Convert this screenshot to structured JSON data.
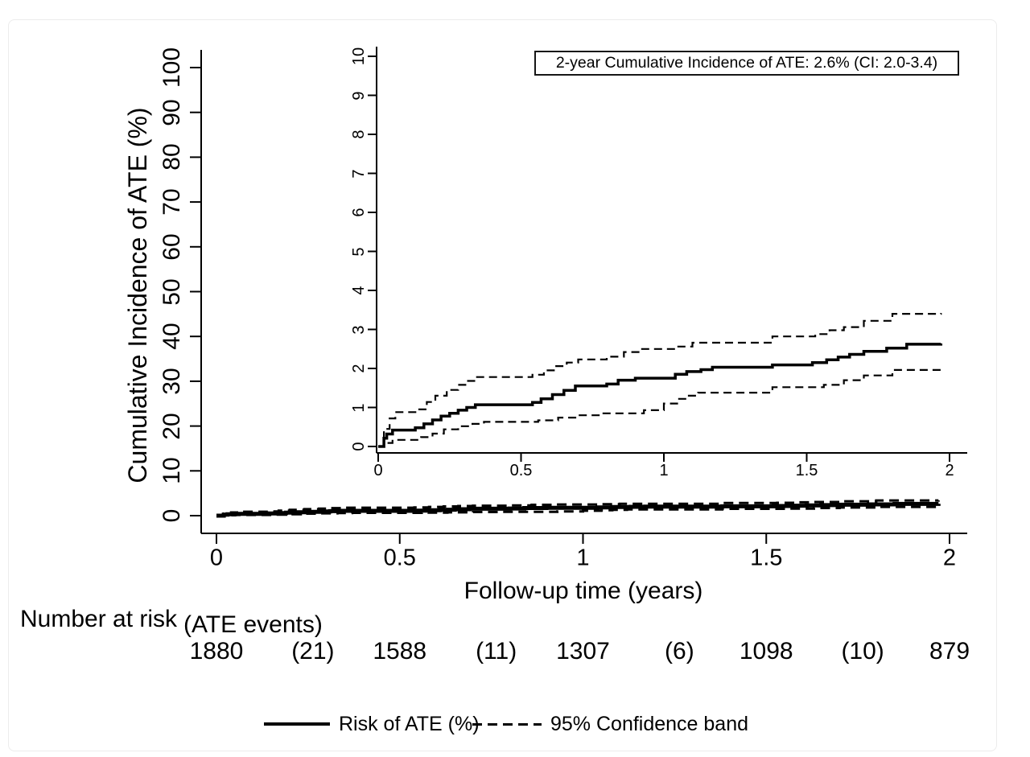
{
  "page": {
    "background": "#ffffff",
    "card_border_color": "#ececec",
    "ink_color": "#000000"
  },
  "main_plot": {
    "y_axis_label": "Cumulative Incidence of ATE (%)",
    "x_axis_label": "Follow-up time (years)",
    "y_ticks": [
      "0",
      "10",
      "20",
      "30",
      "40",
      "50",
      "60",
      "70",
      "80",
      "90",
      "100"
    ],
    "x_ticks": [
      "0",
      "0.5",
      "1",
      "1.5",
      "2"
    ]
  },
  "inset_plot": {
    "y_ticks": [
      "0",
      "1",
      "2",
      "3",
      "4",
      "5",
      "6",
      "7",
      "8",
      "9",
      "10"
    ],
    "x_ticks": [
      "0",
      "0.5",
      "1",
      "1.5",
      "2"
    ],
    "annotation": "2-year Cumulative Incidence of ATE: 2.6% (CI: 2.0-3.4)"
  },
  "risk_table": {
    "label": "Number at risk",
    "sublabel": "(ATE events)",
    "at_risk": [
      "1880",
      "1588",
      "1307",
      "1098",
      "879"
    ],
    "events": [
      "(21)",
      "(11)",
      "(6)",
      "(10)"
    ]
  },
  "legend": {
    "items": [
      {
        "style": "solid",
        "label": "Risk of ATE (%)"
      },
      {
        "style": "dashed",
        "label": "95% Confidence band"
      }
    ]
  },
  "chart_data": {
    "type": "line",
    "subtype": "step-function-cumulative-incidence",
    "title": "",
    "xlabel": "Follow-up time (years)",
    "ylabel": "Cumulative Incidence of ATE (%)",
    "x_range": [
      0,
      2
    ],
    "main_y_range": [
      0,
      100
    ],
    "inset_y_range": [
      0,
      10
    ],
    "grid": false,
    "legend_position": "bottom",
    "annotation": "2-year Cumulative Incidence of ATE: 2.6% (CI: 2.0-3.4)",
    "summary": {
      "estimate_2yr_pct": 2.6,
      "ci_low_pct": 2.0,
      "ci_high_pct": 3.4
    },
    "series": [
      {
        "name": "Risk of ATE (%)",
        "style": "solid",
        "t": [
          0,
          0.02,
          0.03,
          0.05,
          0.13,
          0.16,
          0.19,
          0.22,
          0.25,
          0.28,
          0.31,
          0.34,
          0.54,
          0.57,
          0.61,
          0.65,
          0.69,
          0.8,
          0.84,
          0.9,
          1.04,
          1.08,
          1.13,
          1.17,
          1.38,
          1.52,
          1.57,
          1.61,
          1.65,
          1.7,
          1.78,
          1.85,
          1.97
        ],
        "v": [
          0,
          0.21,
          0.32,
          0.42,
          0.48,
          0.58,
          0.68,
          0.78,
          0.85,
          0.93,
          1.0,
          1.07,
          1.13,
          1.22,
          1.33,
          1.44,
          1.55,
          1.6,
          1.7,
          1.75,
          1.85,
          1.92,
          1.97,
          2.03,
          2.09,
          2.15,
          2.22,
          2.29,
          2.36,
          2.44,
          2.52,
          2.62,
          2.64
        ]
      },
      {
        "name": "95% CI upper",
        "style": "dashed",
        "t": [
          0,
          0.02,
          0.04,
          0.06,
          0.14,
          0.17,
          0.2,
          0.24,
          0.28,
          0.31,
          0.34,
          0.54,
          0.58,
          0.62,
          0.66,
          0.7,
          0.8,
          0.86,
          0.92,
          1.04,
          1.1,
          1.38,
          1.53,
          1.58,
          1.63,
          1.7,
          1.8,
          1.97
        ],
        "v": [
          0,
          0.45,
          0.72,
          0.88,
          0.95,
          1.14,
          1.3,
          1.45,
          1.58,
          1.68,
          1.78,
          1.84,
          1.95,
          2.06,
          2.15,
          2.23,
          2.3,
          2.42,
          2.5,
          2.56,
          2.66,
          2.82,
          2.88,
          2.98,
          3.06,
          3.22,
          3.4,
          3.42
        ]
      },
      {
        "name": "95% CI lower",
        "style": "dashed",
        "t": [
          0,
          0.02,
          0.05,
          0.15,
          0.19,
          0.23,
          0.28,
          0.33,
          0.37,
          0.56,
          0.63,
          0.7,
          0.78,
          0.93,
          1.0,
          1.05,
          1.08,
          1.12,
          1.38,
          1.56,
          1.63,
          1.7,
          1.8,
          1.97
        ],
        "v": [
          0,
          0.09,
          0.17,
          0.24,
          0.33,
          0.44,
          0.52,
          0.58,
          0.63,
          0.67,
          0.74,
          0.8,
          0.85,
          0.93,
          1.1,
          1.22,
          1.3,
          1.38,
          1.52,
          1.58,
          1.7,
          1.82,
          1.96,
          2.0
        ]
      }
    ],
    "number_at_risk": {
      "times": [
        0,
        0.5,
        1,
        1.5,
        2
      ],
      "at_risk": [
        1880,
        1588,
        1307,
        1098,
        879
      ],
      "events_between": [
        21,
        11,
        6,
        10
      ]
    }
  }
}
